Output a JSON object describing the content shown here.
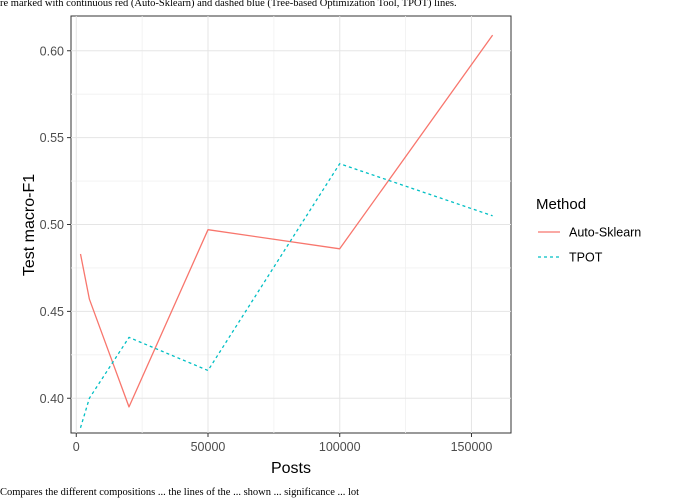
{
  "caption_top": "re marked with continuous red (Auto-Sklearn) and dashed blue (Tree-based Optimization Tool, TPOT) lines.",
  "caption_bottom": "Compares the different compositions ... the lines of the ... shown ... significance ... lot",
  "chart_data": {
    "type": "line",
    "xlabel": "Posts",
    "ylabel": "Test macro-F1",
    "xlim": [
      -2000,
      165000
    ],
    "ylim": [
      0.38,
      0.62
    ],
    "x_ticks": [
      0,
      50000,
      100000,
      150000
    ],
    "x_tick_labels": [
      "0",
      "50000",
      "100000",
      "150000"
    ],
    "y_ticks": [
      0.4,
      0.45,
      0.5,
      0.55,
      0.6
    ],
    "y_tick_labels": [
      "0.40",
      "0.45",
      "0.50",
      "0.55",
      "0.60"
    ],
    "grid": true,
    "legend": {
      "title": "Method",
      "position": "right"
    },
    "series": [
      {
        "name": "Auto-Sklearn",
        "color": "#F8766D",
        "dash": "solid",
        "x": [
          1600,
          5000,
          20000,
          50000,
          100000,
          158000
        ],
        "y": [
          0.483,
          0.457,
          0.395,
          0.497,
          0.486,
          0.609
        ]
      },
      {
        "name": "TPOT",
        "color": "#00BFC4",
        "dash": "dashed",
        "x": [
          1600,
          5000,
          20000,
          50000,
          100000,
          158000
        ],
        "y": [
          0.383,
          0.4,
          0.435,
          0.416,
          0.535,
          0.505
        ]
      }
    ]
  }
}
